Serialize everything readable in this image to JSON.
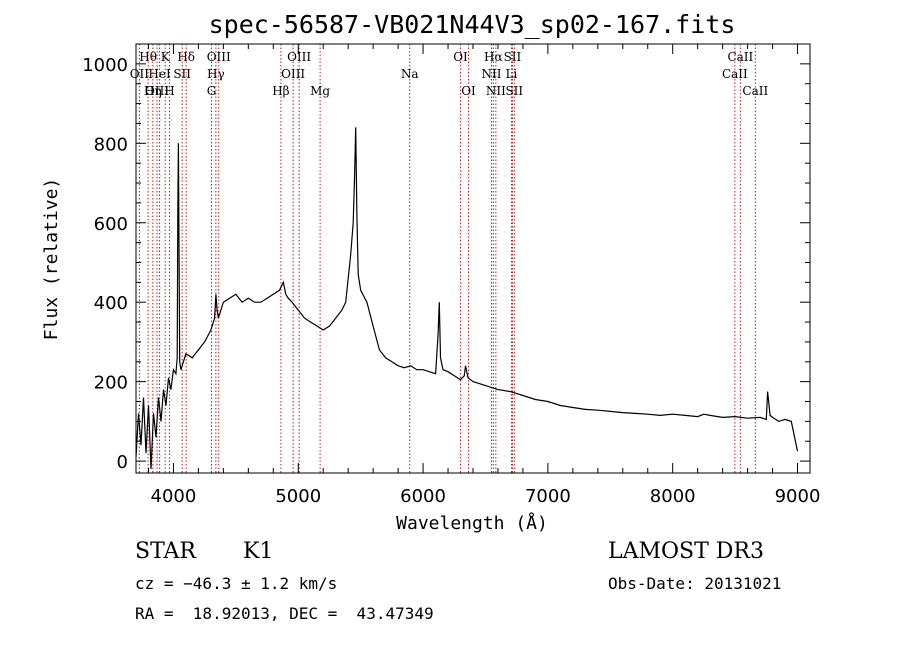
{
  "chart_data": {
    "type": "line",
    "title": "spec-56587-VB021N44V3_sp02-167.fits",
    "xlabel": "Wavelength (Å)",
    "ylabel": "Flux (relative)",
    "xlim": [
      3700,
      9100
    ],
    "ylim": [
      -30,
      1050
    ],
    "xticks": [
      4000,
      5000,
      6000,
      7000,
      8000,
      9000
    ],
    "yticks": [
      0,
      200,
      400,
      600,
      800,
      1000
    ],
    "grid": false,
    "series": [
      {
        "x": [
          3700,
          3720,
          3740,
          3760,
          3780,
          3800,
          3820,
          3840,
          3860,
          3880,
          3900,
          3920,
          3940,
          3960,
          3980,
          4000,
          4020,
          4030,
          4035,
          4040,
          4045,
          4050,
          4060,
          4080,
          4100,
          4150,
          4200,
          4250,
          4300,
          4330,
          4340,
          4350,
          4360,
          4380,
          4400,
          4450,
          4500,
          4550,
          4600,
          4650,
          4700,
          4750,
          4800,
          4850,
          4880,
          4900,
          4920,
          4950,
          5000,
          5050,
          5100,
          5150,
          5200,
          5250,
          5300,
          5350,
          5380,
          5400,
          5420,
          5440,
          5450,
          5460,
          5470,
          5480,
          5500,
          5550,
          5600,
          5650,
          5700,
          5750,
          5800,
          5850,
          5900,
          5950,
          6000,
          6050,
          6100,
          6120,
          6130,
          6140,
          6160,
          6200,
          6250,
          6300,
          6330,
          6340,
          6360,
          6400,
          6500,
          6600,
          6700,
          6800,
          6900,
          7000,
          7100,
          7200,
          7300,
          7400,
          7500,
          7600,
          7700,
          7800,
          7900,
          8000,
          8100,
          8200,
          8250,
          8300,
          8400,
          8500,
          8600,
          8700,
          8750,
          8760,
          8780,
          8800,
          8850,
          8900,
          8950,
          9000
        ],
        "y": [
          10,
          120,
          40,
          160,
          20,
          140,
          -20,
          120,
          60,
          160,
          100,
          180,
          140,
          210,
          180,
          230,
          220,
          260,
          620,
          800,
          500,
          250,
          230,
          250,
          270,
          260,
          280,
          300,
          330,
          360,
          420,
          380,
          360,
          380,
          400,
          410,
          420,
          400,
          410,
          400,
          400,
          410,
          420,
          430,
          450,
          420,
          410,
          400,
          380,
          360,
          350,
          340,
          330,
          340,
          360,
          380,
          400,
          460,
          520,
          600,
          700,
          840,
          620,
          470,
          430,
          400,
          340,
          280,
          260,
          250,
          240,
          235,
          240,
          230,
          230,
          225,
          220,
          320,
          400,
          260,
          230,
          225,
          215,
          205,
          215,
          240,
          210,
          200,
          190,
          180,
          175,
          165,
          155,
          150,
          140,
          135,
          130,
          128,
          125,
          122,
          120,
          118,
          115,
          118,
          115,
          112,
          118,
          115,
          110,
          112,
          108,
          110,
          105,
          175,
          115,
          110,
          100,
          105,
          100,
          25
        ]
      }
    ],
    "line_markers": [
      {
        "label": "Hθ",
        "x": 3797,
        "row": 1
      },
      {
        "label": "OII",
        "x": 3727,
        "row": 2
      },
      {
        "label": "OIII",
        "x": 3869,
        "row": 3
      },
      {
        "label": "K",
        "x": 3934,
        "row": 1
      },
      {
        "label": "HeI",
        "x": 3889,
        "row": 2
      },
      {
        "label": "Hη",
        "x": 3835,
        "row": 3
      },
      {
        "label": "Hδ",
        "x": 4102,
        "row": 1
      },
      {
        "label": "SII",
        "x": 4070,
        "row": 2
      },
      {
        "label": "H",
        "x": 3968,
        "row": 3
      },
      {
        "label": "OIII",
        "x": 4363,
        "row": 1
      },
      {
        "label": "Hγ",
        "x": 4340,
        "row": 2
      },
      {
        "label": "G",
        "x": 4305,
        "row": 3
      },
      {
        "label": "OIII",
        "x": 5007,
        "row": 1
      },
      {
        "label": "OIII",
        "x": 4959,
        "row": 2
      },
      {
        "label": "Hβ",
        "x": 4861,
        "row": 3
      },
      {
        "label": "Mg",
        "x": 5175,
        "row": 3
      },
      {
        "label": "Na",
        "x": 5893,
        "row": 2
      },
      {
        "label": "OI",
        "x": 6300,
        "row": 1
      },
      {
        "label": "OI",
        "x": 6364,
        "row": 3
      },
      {
        "label": "Hα",
        "x": 6563,
        "row": 1
      },
      {
        "label": "SII",
        "x": 6716,
        "row": 1
      },
      {
        "label": "NII",
        "x": 6548,
        "row": 2
      },
      {
        "label": "Li",
        "x": 6708,
        "row": 2
      },
      {
        "label": "NII",
        "x": 6583,
        "row": 3
      },
      {
        "label": "SII",
        "x": 6731,
        "row": 3
      },
      {
        "label": "CaII",
        "x": 8542,
        "row": 1
      },
      {
        "label": "CaII",
        "x": 8498,
        "row": 2
      },
      {
        "label": "CaII",
        "x": 8662,
        "row": 3
      }
    ]
  },
  "info": {
    "object_class": "STAR",
    "subclass": "K1",
    "survey": "LAMOST DR3",
    "cz": "cz = −46.3 ± 1.2 km/s",
    "obs_date": "Obs-Date: 20131021",
    "coords": "RA =  18.92013, DEC =  43.47349"
  },
  "colors": {
    "marker_line": "#b22222",
    "spectrum": "#000000"
  }
}
